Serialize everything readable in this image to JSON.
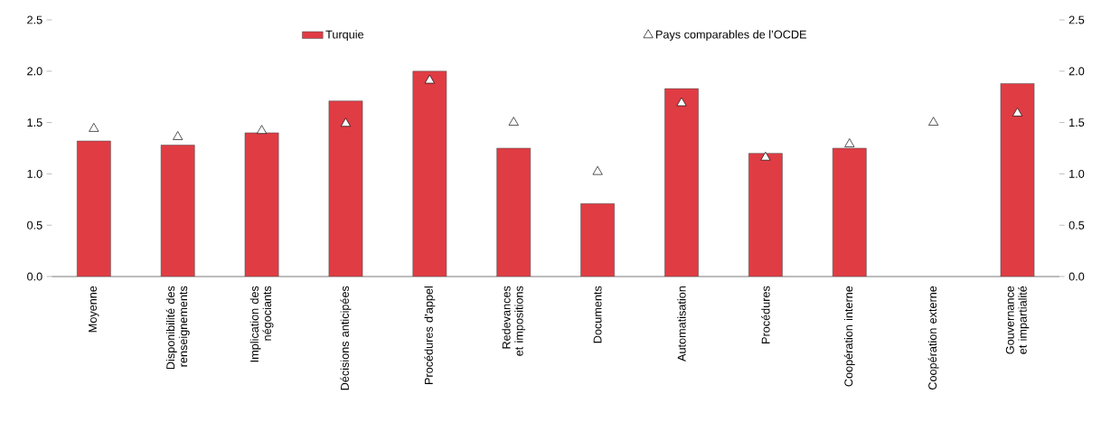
{
  "chart_data": {
    "type": "bar",
    "categories": [
      "Moyenne",
      "Disponibilité des renseignements",
      "Implication des négociants",
      "Décisions anticipées",
      "Procédures d’appel",
      "Redevances et impositions",
      "Documents",
      "Automatisation",
      "Procédures",
      "Coopération interne",
      "Coopération externe",
      "Gouvernance et impartialité"
    ],
    "series": [
      {
        "name": "Turquie",
        "color": "#e03c44",
        "values": [
          1.32,
          1.28,
          1.4,
          1.71,
          2.0,
          1.25,
          0.71,
          1.83,
          1.2,
          1.25,
          null,
          1.88
        ]
      },
      {
        "name": "Pays comparables de l’OCDE",
        "type": "scatter",
        "marker": "triangle",
        "color": "#ffffff",
        "values": [
          1.44,
          1.36,
          1.42,
          1.49,
          1.91,
          1.5,
          1.02,
          1.69,
          1.16,
          1.29,
          1.5,
          1.59
        ]
      }
    ],
    "ylim": [
      0,
      2.5
    ],
    "yticks": [
      {
        "value": 0,
        "label": "0.0"
      },
      {
        "value": 0.5,
        "label": "0.5"
      },
      {
        "value": 1,
        "label": "1.0"
      },
      {
        "value": 1.5,
        "label": "1.5"
      },
      {
        "value": 2,
        "label": "2.0"
      },
      {
        "value": 2.5,
        "label": "2.5"
      }
    ],
    "y2lim": [
      0,
      2.5
    ],
    "y2ticks": [
      {
        "value": 0,
        "label": "0.0"
      },
      {
        "value": 0.5,
        "label": "0.5"
      },
      {
        "value": 1,
        "label": "1.0"
      },
      {
        "value": 1.5,
        "label": "1.5"
      },
      {
        "value": 2,
        "label": "2.0"
      },
      {
        "value": 2.5,
        "label": "2.5"
      }
    ],
    "legend": "top",
    "grid": false
  }
}
